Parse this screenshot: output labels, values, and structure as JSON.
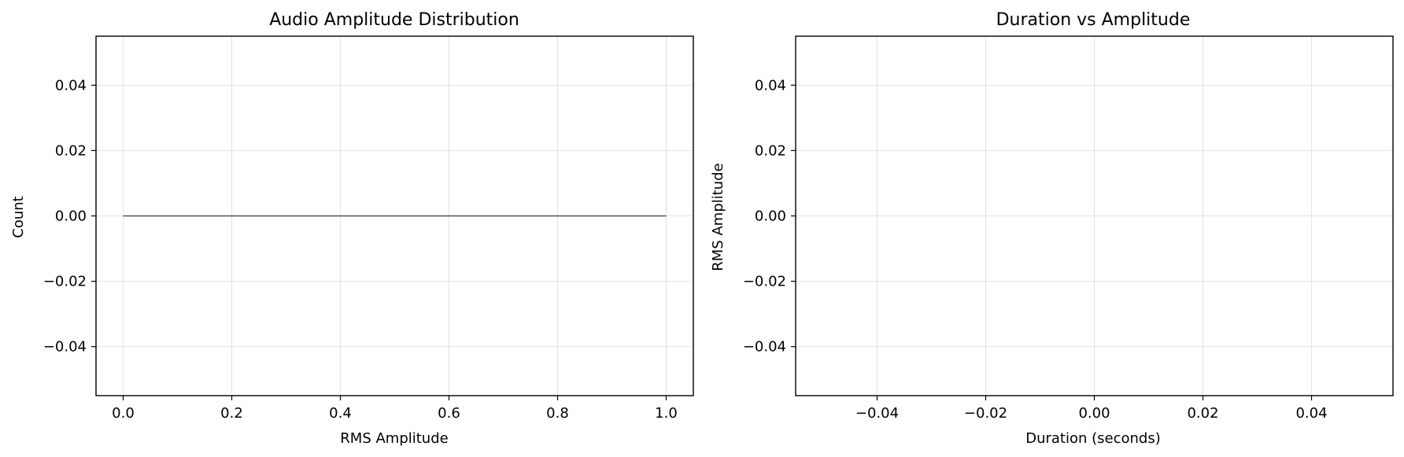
{
  "chart_data": [
    {
      "type": "bar",
      "title": "Audio Amplitude Distribution",
      "xlabel": "RMS Amplitude",
      "ylabel": "Count",
      "xlim": [
        -0.05,
        1.05
      ],
      "ylim": [
        -0.055,
        0.055
      ],
      "xticks": [
        0.0,
        0.2,
        0.4,
        0.6,
        0.8,
        1.0
      ],
      "xtick_labels": [
        "0.0",
        "0.2",
        "0.4",
        "0.6",
        "0.8",
        "1.0"
      ],
      "yticks": [
        -0.04,
        -0.02,
        0.0,
        0.02,
        0.04
      ],
      "ytick_labels": [
        "−0.04",
        "−0.02",
        "0.00",
        "0.02",
        "0.04"
      ],
      "grid": true,
      "series": [
        {
          "x_range": [
            0.0,
            1.0
          ],
          "values": [
            0.0
          ],
          "color": "#555555"
        }
      ]
    },
    {
      "type": "scatter",
      "title": "Duration vs Amplitude",
      "xlabel": "Duration (seconds)",
      "ylabel": "RMS Amplitude",
      "xlim": [
        -0.055,
        0.055
      ],
      "ylim": [
        -0.055,
        0.055
      ],
      "xticks": [
        -0.04,
        -0.02,
        0.0,
        0.02,
        0.04
      ],
      "xtick_labels": [
        "−0.04",
        "−0.02",
        "0.00",
        "0.02",
        "0.04"
      ],
      "yticks": [
        -0.04,
        -0.02,
        0.0,
        0.02,
        0.04
      ],
      "ytick_labels": [
        "−0.04",
        "−0.02",
        "0.00",
        "0.02",
        "0.04"
      ],
      "grid": true,
      "points": []
    }
  ]
}
